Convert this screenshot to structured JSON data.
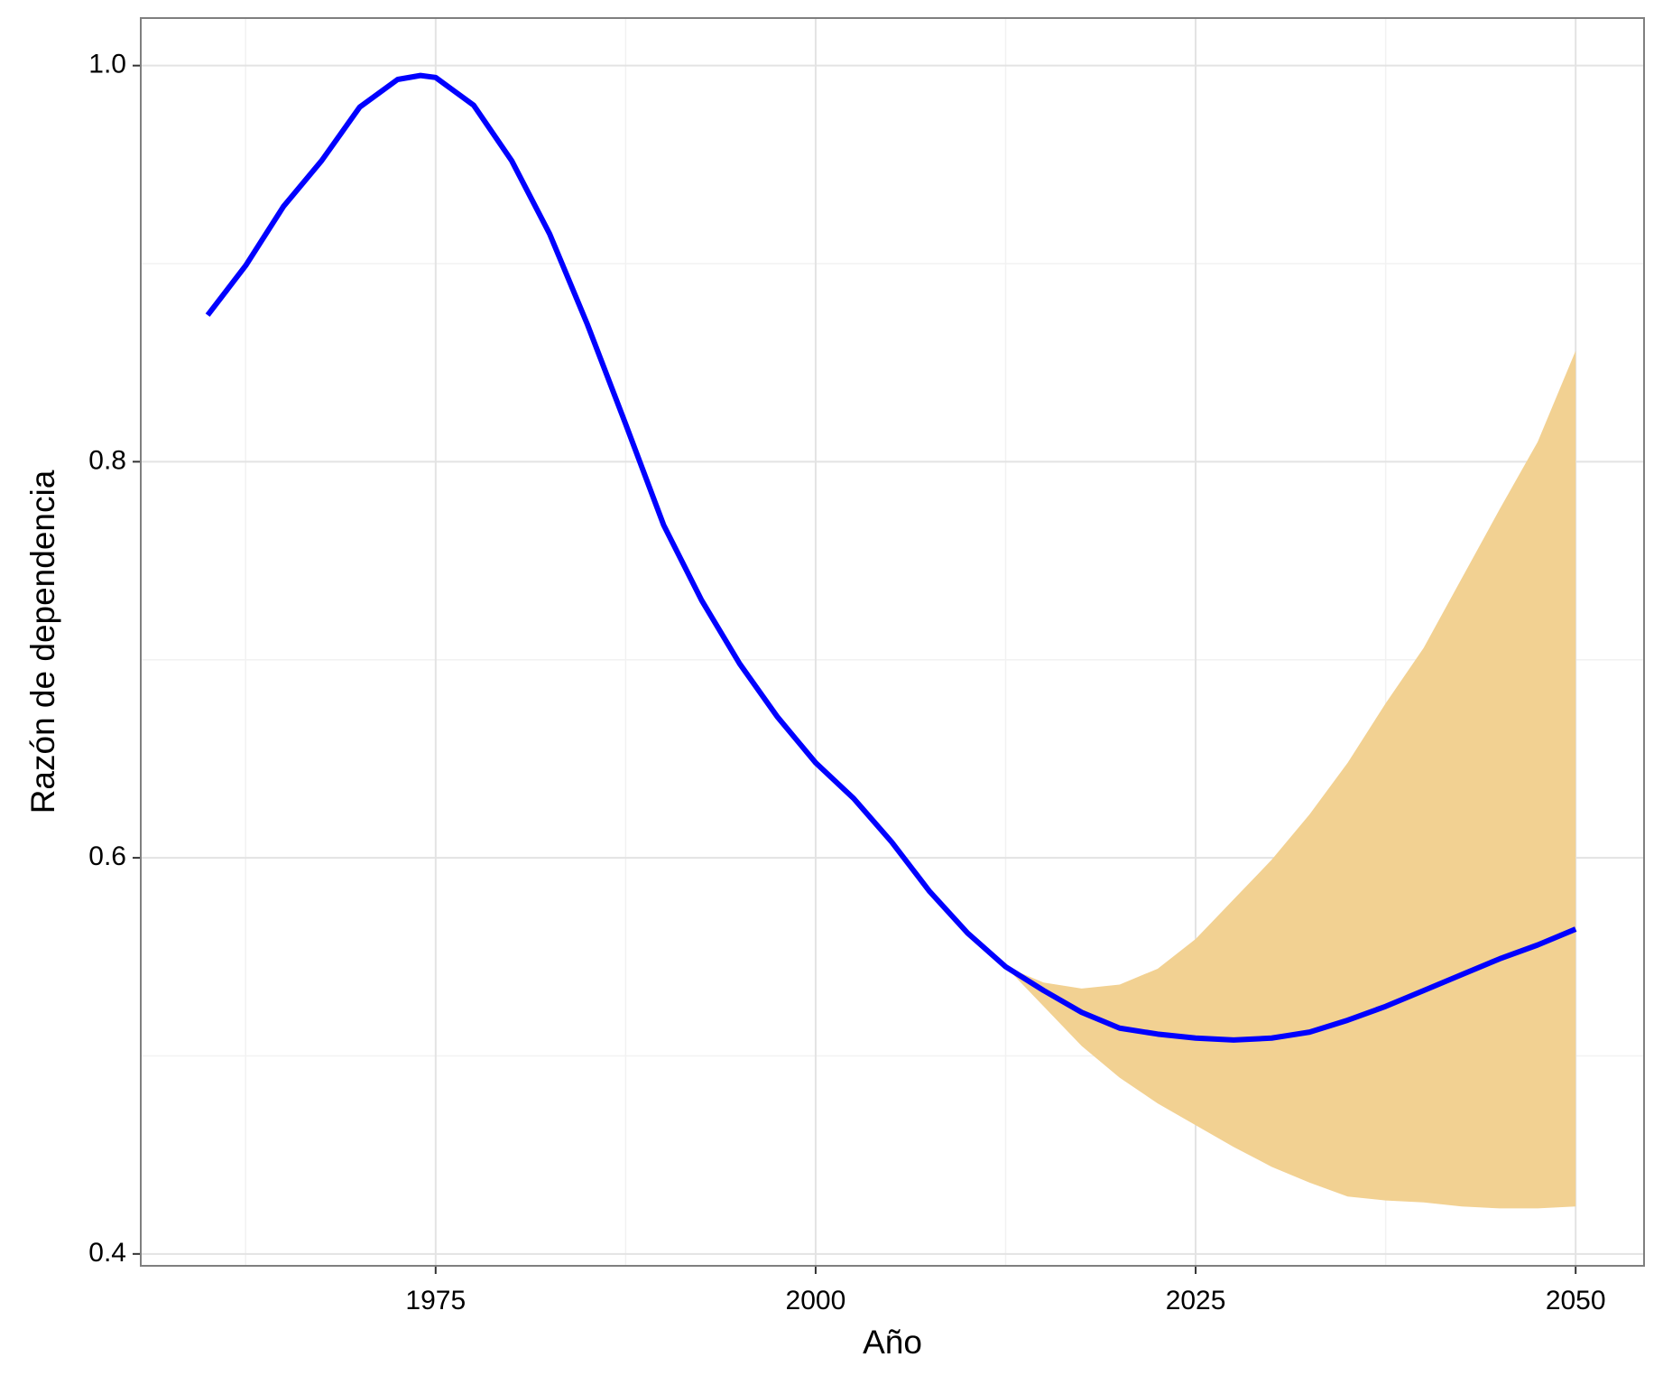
{
  "chart_data": {
    "type": "line",
    "x_label": "Año",
    "y_label": "Razón de dependencia",
    "xlim": [
      1955.6,
      2054.5
    ],
    "ylim": [
      0.394,
      1.024
    ],
    "xticks": [
      1975,
      2000,
      2025,
      2050
    ],
    "yticks": [
      {
        "value": 0.4,
        "label": "0.4"
      },
      {
        "value": 0.6,
        "label": "0.6"
      },
      {
        "value": 0.8,
        "label": "0.8"
      },
      {
        "value": 1.0,
        "label": "1.0"
      }
    ],
    "x_minor_grid": [
      1962.5,
      1987.5,
      2012.5,
      2037.5
    ],
    "y_minor_grid": [
      0.5,
      0.7,
      0.9
    ],
    "grid": true,
    "series": [
      {
        "color": "#0000ff",
        "x": [
          1960,
          1962.5,
          1965,
          1967.5,
          1970,
          1972.5,
          1974,
          1975,
          1977.5,
          1980,
          1982.5,
          1985,
          1987.5,
          1990,
          1992.5,
          1995,
          1997.5,
          2000,
          2002.5,
          2005,
          2007.5,
          2010,
          2012.5,
          2015,
          2017.5,
          2020,
          2022.5,
          2025,
          2027.5,
          2030,
          2032.5,
          2035,
          2037.5,
          2040,
          2042.5,
          2045,
          2047.5,
          2050
        ],
        "values": [
          0.874,
          0.899,
          0.929,
          0.952,
          0.979,
          0.993,
          0.995,
          0.994,
          0.98,
          0.952,
          0.915,
          0.869,
          0.819,
          0.768,
          0.73,
          0.698,
          0.671,
          0.648,
          0.63,
          0.608,
          0.583,
          0.562,
          0.545,
          0.533,
          0.522,
          0.514,
          0.511,
          0.509,
          0.508,
          0.509,
          0.512,
          0.518,
          0.525,
          0.533,
          0.541,
          0.549,
          0.556,
          0.564
        ]
      }
    ],
    "band": {
      "color": "#f2d192",
      "x": [
        2012.5,
        2015,
        2017.5,
        2020,
        2022.5,
        2025,
        2027.5,
        2030,
        2032.5,
        2035,
        2037.5,
        2040,
        2042.5,
        2045,
        2047.5,
        2050
      ],
      "lower": [
        0.545,
        0.525,
        0.505,
        0.489,
        0.476,
        0.465,
        0.454,
        0.444,
        0.436,
        0.429,
        0.427,
        0.426,
        0.424,
        0.423,
        0.423,
        0.424
      ],
      "upper": [
        0.545,
        0.537,
        0.534,
        0.536,
        0.544,
        0.559,
        0.579,
        0.599,
        0.622,
        0.648,
        0.678,
        0.706,
        0.741,
        0.776,
        0.81,
        0.856
      ]
    }
  }
}
